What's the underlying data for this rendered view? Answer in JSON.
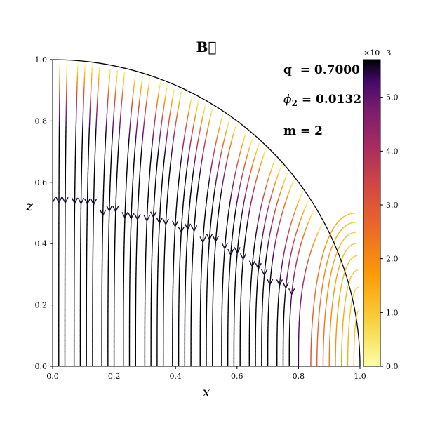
{
  "chart_data": {
    "type": "streamplot",
    "title": "B⃗",
    "xlabel": "x",
    "ylabel": "z",
    "xlim": [
      0.0,
      1.0
    ],
    "ylim": [
      0.0,
      1.0
    ],
    "xticks": [
      "0.0",
      "0.2",
      "0.4",
      "0.6",
      "0.8",
      "1.0"
    ],
    "yticks": [
      "0.0",
      "0.2",
      "0.4",
      "0.6",
      "0.8",
      "1.0"
    ],
    "boundary": "quarter circle of radius 1",
    "annotations": {
      "q": "q  = 0.7000",
      "phi2_symbol": "ϕ",
      "phi2_subscript": "2",
      "phi2_value": " = 0.0132",
      "m": "m = 2"
    },
    "colorbar": {
      "colormap": "inferno_r",
      "min": 0.0,
      "max": 5.7,
      "ticks": [
        "0.0",
        "1.0",
        "2.0",
        "3.0",
        "4.0",
        "5.0"
      ],
      "tick_values": [
        0,
        1,
        2,
        3,
        4,
        5
      ],
      "exponent_label": "×10−3"
    },
    "field_lines": {
      "vertical_line_x0": [
        0.0,
        0.02,
        0.04,
        0.07,
        0.09,
        0.11,
        0.13,
        0.16,
        0.18,
        0.2,
        0.23,
        0.25,
        0.27,
        0.3,
        0.32,
        0.34,
        0.36,
        0.39,
        0.41,
        0.43,
        0.45,
        0.48,
        0.5,
        0.52,
        0.55,
        0.57,
        0.59,
        0.61,
        0.64,
        0.66,
        0.68,
        0.7,
        0.73,
        0.75,
        0.77,
        0.8
      ],
      "loop_x0": [
        0.84,
        0.86,
        0.88,
        0.9,
        0.92,
        0.94,
        0.96,
        0.98
      ],
      "arrow_z": [
        0.53,
        0.53,
        0.53,
        0.53,
        0.53,
        0.53,
        0.53,
        0.5,
        0.5,
        0.5,
        0.48,
        0.48,
        0.48,
        0.48,
        0.48,
        0.46,
        0.46,
        0.46,
        0.44,
        0.44,
        0.44,
        0.41,
        0.41,
        0.41,
        0.39,
        0.37,
        0.37,
        0.35,
        0.32,
        0.32,
        0.3,
        0.27,
        0.27,
        0.25,
        0.23
      ]
    }
  }
}
